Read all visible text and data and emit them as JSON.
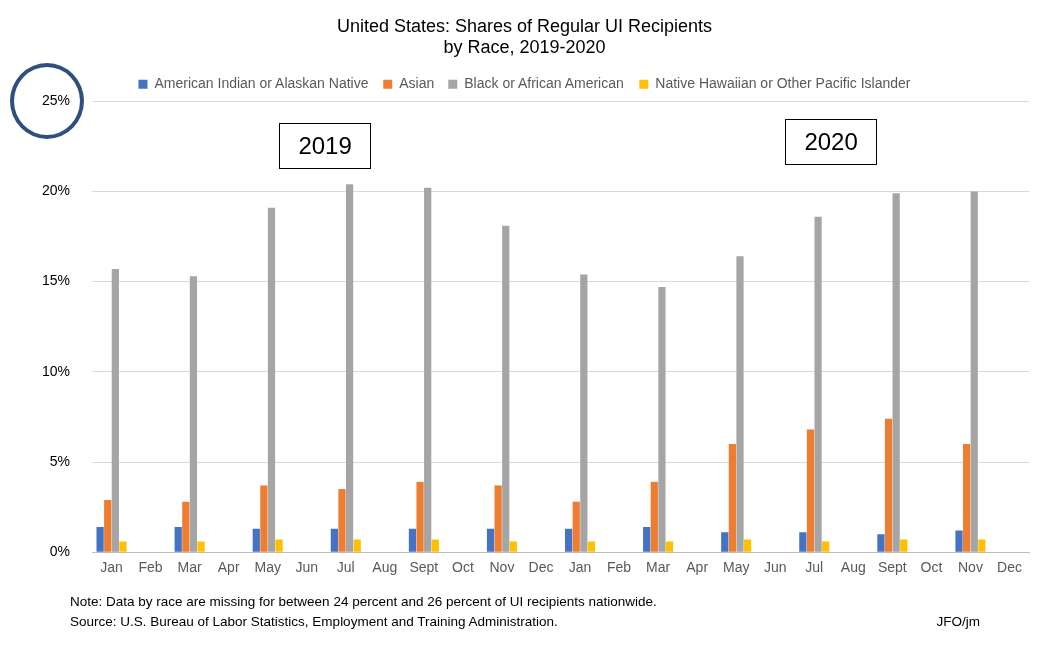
{
  "chart_data": {
    "type": "bar",
    "title": "United States: Shares of Regular UI Recipients\nby Race, 2019-2020",
    "categories": [
      "Jan",
      "Feb",
      "Mar",
      "Apr",
      "May",
      "Jun",
      "Jul",
      "Aug",
      "Sept",
      "Oct",
      "Nov",
      "Dec",
      "Jan",
      "Feb",
      "Mar",
      "Apr",
      "May",
      "Jun",
      "Jul",
      "Aug",
      "Sept",
      "Oct",
      "Nov",
      "Dec"
    ],
    "series": [
      {
        "name": "American Indian or Alaskan Native",
        "color": "#4472c4",
        "values": [
          1.4,
          null,
          1.4,
          null,
          1.3,
          null,
          1.3,
          null,
          1.3,
          null,
          1.3,
          null,
          1.3,
          null,
          1.4,
          null,
          1.1,
          null,
          1.1,
          null,
          1.0,
          null,
          1.2,
          null
        ]
      },
      {
        "name": "Asian",
        "color": "#ed7d31",
        "values": [
          2.9,
          null,
          2.8,
          null,
          3.7,
          null,
          3.5,
          null,
          3.9,
          null,
          3.7,
          null,
          2.8,
          null,
          3.9,
          null,
          6.0,
          null,
          6.8,
          null,
          7.4,
          null,
          6.0,
          null
        ]
      },
      {
        "name": "Black or African American",
        "color": "#a5a5a5",
        "values": [
          15.7,
          null,
          15.3,
          null,
          19.1,
          null,
          20.4,
          null,
          20.2,
          null,
          18.1,
          null,
          15.4,
          null,
          14.7,
          null,
          16.4,
          null,
          18.6,
          null,
          19.9,
          null,
          20.0,
          null
        ]
      },
      {
        "name": "Native Hawaiian or Other Pacific Islander",
        "color": "#ffc000",
        "values": [
          0.6,
          null,
          0.6,
          null,
          0.7,
          null,
          0.7,
          null,
          0.7,
          null,
          0.6,
          null,
          0.6,
          null,
          0.6,
          null,
          0.7,
          null,
          0.6,
          null,
          0.7,
          null,
          0.7,
          null
        ]
      }
    ],
    "ylim": [
      0,
      25
    ],
    "yticks": [
      {
        "value": 0,
        "label": "0%"
      },
      {
        "value": 5,
        "label": "5%"
      },
      {
        "value": 10,
        "label": "10%"
      },
      {
        "value": 15,
        "label": "15%"
      },
      {
        "value": 20,
        "label": "20%"
      },
      {
        "value": 25,
        "label": "25%"
      }
    ],
    "grid": "y",
    "legend": "top",
    "annotations": [
      "2019",
      "2020",
      "Note: Data by race are missing for between 24 percent and 26 percent of UI recipients nationwide.",
      "Source: U.S. Bureau of Labor Statistics, Employment and Training Administration.",
      "JFO/jm"
    ]
  }
}
